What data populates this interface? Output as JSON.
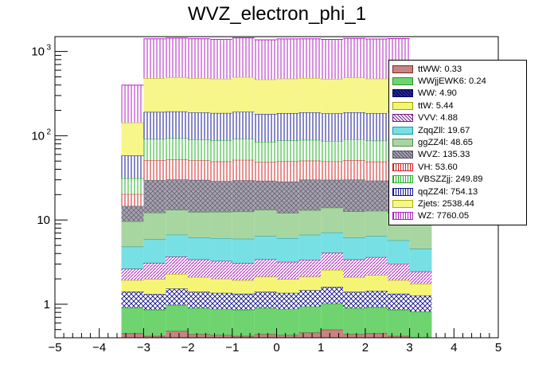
{
  "chart_data": {
    "type": "bar",
    "title": "WVZ_electron_phi_1",
    "stacked": true,
    "y_scale": "log",
    "xlim": [
      -5,
      5
    ],
    "ylim": [
      0.4,
      1500
    ],
    "x_ticks": [
      "−5",
      "−4",
      "−3",
      "−2",
      "−1",
      "0",
      "1",
      "2",
      "3",
      "4",
      "5"
    ],
    "y_ticks": [
      {
        "value": 1,
        "label": "1"
      },
      {
        "value": 10,
        "label": "10"
      },
      {
        "value": 100,
        "label": "10",
        "exp": "2"
      },
      {
        "value": 1000,
        "label": "10",
        "exp": "3"
      }
    ],
    "bin_edges": [
      -3.5,
      -3.0,
      -2.5,
      -2.0,
      -1.5,
      -1.0,
      -0.5,
      0.0,
      0.5,
      1.0,
      1.5,
      2.0,
      2.5,
      3.0,
      3.5
    ],
    "series": [
      {
        "name": "ttWW: 0.33",
        "fill": "#c98383",
        "line": "#7a2a2a",
        "pattern": "solid",
        "values": [
          0.45,
          0.42,
          0.48,
          0.44,
          0.43,
          0.42,
          0.44,
          0.43,
          0.46,
          0.5,
          0.44,
          0.45,
          0.42,
          0.4
        ]
      },
      {
        "name": "WWjjEWK6: 0.24",
        "fill": "#6fd46f",
        "line": "#2a8f2a",
        "pattern": "solid",
        "values": [
          0.46,
          0.44,
          0.5,
          0.46,
          0.45,
          0.44,
          0.46,
          0.45,
          0.48,
          0.52,
          0.46,
          0.47,
          0.44,
          0.42
        ]
      },
      {
        "name": "WW: 4.90",
        "fill": "#2b2b8f",
        "line": "#000060",
        "pattern": "cross",
        "values": [
          0.5,
          0.46,
          0.55,
          0.5,
          0.48,
          0.47,
          0.5,
          0.48,
          0.52,
          0.58,
          0.5,
          0.52,
          0.47,
          0.45
        ]
      },
      {
        "name": "ttW: 5.44",
        "fill": "#f5f575",
        "line": "#a0a000",
        "pattern": "solid",
        "values": [
          0.52,
          0.68,
          0.75,
          0.7,
          0.65,
          0.6,
          0.72,
          0.62,
          0.66,
          0.95,
          0.7,
          0.78,
          0.6,
          0.48
        ]
      },
      {
        "name": "VVV: 4.88",
        "fill": "#c56fd6",
        "line": "#7a1a8a",
        "pattern": "diag",
        "values": [
          0.7,
          1.1,
          1.4,
          1.3,
          1.25,
          1.15,
          1.3,
          1.2,
          1.25,
          1.55,
          1.3,
          1.4,
          1.1,
          0.7
        ]
      },
      {
        "name": "ZqqZll: 19.67",
        "fill": "#77e0e4",
        "line": "#1a9aa0",
        "pattern": "solid",
        "values": [
          2.2,
          2.8,
          3.0,
          2.8,
          2.8,
          2.9,
          3.0,
          2.9,
          3.3,
          3.0,
          2.8,
          2.8,
          2.7,
          2.1
        ]
      },
      {
        "name": "ggZZ4l: 48.65",
        "fill": "#a8d6a0",
        "line": "#4f8f4f",
        "pattern": "solid",
        "values": [
          4.8,
          6.3,
          6.5,
          6.2,
          6.4,
          6.6,
          6.8,
          6.0,
          6.4,
          6.9,
          6.4,
          6.4,
          6.3,
          4.9
        ]
      },
      {
        "name": "WVZ: 135.33",
        "fill": "#a8a3b0",
        "line": "#555060",
        "pattern": "cross",
        "values": [
          5.0,
          17.5,
          17.0,
          17.5,
          16.5,
          17.0,
          16.0,
          16.5,
          17.0,
          16.0,
          17.5,
          16.5,
          17.5,
          5.2
        ]
      },
      {
        "name": "VH: 53.60",
        "fill": "#ffffff",
        "line": "#d02020",
        "pattern": "vline",
        "values": [
          5.6,
          21.5,
          22.0,
          21.0,
          20.5,
          22.0,
          19.5,
          21.0,
          20.5,
          19.5,
          21.0,
          20.0,
          21.5,
          5.8
        ]
      },
      {
        "name": "VBSZZjj: 249.89",
        "fill": "#ffffff",
        "line": "#20b020",
        "pattern": "vline",
        "values": [
          11.0,
          40.0,
          41.0,
          39.0,
          38.5,
          40.0,
          36.0,
          38.0,
          38.5,
          37.0,
          39.5,
          38.0,
          40.5,
          11.5
        ]
      },
      {
        "name": "qqZZ4l: 754.13",
        "fill": "#ffffff",
        "line": "#101090",
        "pattern": "vline",
        "values": [
          27.0,
          100.0,
          101.0,
          99.0,
          98.0,
          100.0,
          96.0,
          98.0,
          100.0,
          97.0,
          99.0,
          98.0,
          100.0,
          27.5
        ]
      },
      {
        "name": "Zjets: 2538.44",
        "fill": "#f6f68a",
        "line": "#b0b000",
        "pattern": "solid",
        "values": [
          85.0,
          290.0,
          300.0,
          292.0,
          288.0,
          305.0,
          285.0,
          290.0,
          295.0,
          288.0,
          300.0,
          290.0,
          294.0,
          86.0
        ]
      },
      {
        "name": "WZ: 7760.05",
        "fill": "#ffffff",
        "line": "#b020c0",
        "pattern": "vline",
        "values": [
          255.0,
          930.0,
          945.0,
          935.0,
          920.0,
          955.0,
          910.0,
          935.0,
          930.0,
          920.0,
          940.0,
          930.0,
          935.0,
          260.0
        ]
      }
    ]
  }
}
